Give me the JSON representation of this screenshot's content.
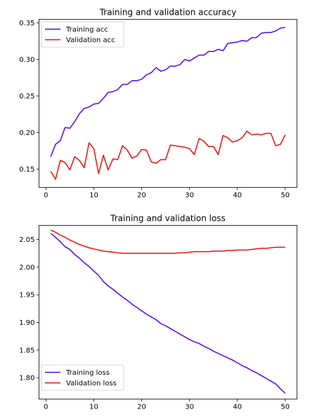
{
  "chart_data": [
    {
      "type": "line",
      "title": "Training and validation accuracy",
      "xlabel": "",
      "ylabel": "",
      "xlim": [
        -1.45,
        52.45
      ],
      "ylim": [
        0.125,
        0.355
      ],
      "xticks": [
        "0",
        "10",
        "20",
        "30",
        "40",
        "50"
      ],
      "xtick_values": [
        0,
        10,
        20,
        30,
        40,
        50
      ],
      "yticks": [
        "0.15",
        "0.20",
        "0.25",
        "0.30",
        "0.35"
      ],
      "ytick_values": [
        0.15,
        0.2,
        0.25,
        0.3,
        0.35
      ],
      "legend": "upper left",
      "grid": false,
      "x": [
        1,
        2,
        3,
        4,
        5,
        6,
        7,
        8,
        9,
        10,
        11,
        12,
        13,
        14,
        15,
        16,
        17,
        18,
        19,
        20,
        21,
        22,
        23,
        24,
        25,
        26,
        27,
        28,
        29,
        30,
        31,
        32,
        33,
        34,
        35,
        36,
        37,
        38,
        39,
        40,
        41,
        42,
        43,
        44,
        45,
        46,
        47,
        48,
        49,
        50
      ],
      "series": [
        {
          "name": "Training acc",
          "color": "#4b0af5",
          "values": [
            0.167,
            0.184,
            0.189,
            0.207,
            0.206,
            0.215,
            0.226,
            0.233,
            0.235,
            0.239,
            0.24,
            0.247,
            0.255,
            0.256,
            0.259,
            0.266,
            0.266,
            0.271,
            0.271,
            0.273,
            0.279,
            0.282,
            0.289,
            0.284,
            0.286,
            0.291,
            0.291,
            0.293,
            0.3,
            0.298,
            0.302,
            0.306,
            0.306,
            0.311,
            0.311,
            0.314,
            0.312,
            0.322,
            0.323,
            0.324,
            0.326,
            0.325,
            0.33,
            0.33,
            0.336,
            0.337,
            0.337,
            0.339,
            0.343,
            0.344
          ]
        },
        {
          "name": "Validation acc",
          "color": "#f20d0d",
          "values": [
            0.147,
            0.136,
            0.162,
            0.159,
            0.149,
            0.167,
            0.162,
            0.152,
            0.186,
            0.178,
            0.144,
            0.169,
            0.149,
            0.164,
            0.163,
            0.182,
            0.176,
            0.165,
            0.168,
            0.177,
            0.176,
            0.16,
            0.158,
            0.163,
            0.163,
            0.183,
            0.182,
            0.181,
            0.18,
            0.178,
            0.17,
            0.192,
            0.188,
            0.181,
            0.181,
            0.17,
            0.196,
            0.193,
            0.187,
            0.189,
            0.193,
            0.202,
            0.197,
            0.198,
            0.197,
            0.199,
            0.199,
            0.182,
            0.184,
            0.197
          ]
        }
      ]
    },
    {
      "type": "line",
      "title": "Training and validation loss",
      "xlabel": "",
      "ylabel": "",
      "xlim": [
        -1.45,
        52.45
      ],
      "ylim": [
        1.7615,
        2.0755
      ],
      "xticks": [
        "0",
        "10",
        "20",
        "30",
        "40",
        "50"
      ],
      "xtick_values": [
        0,
        10,
        20,
        30,
        40,
        50
      ],
      "yticks": [
        "1.80",
        "1.85",
        "1.90",
        "1.95",
        "2.00",
        "2.05"
      ],
      "ytick_values": [
        1.8,
        1.85,
        1.9,
        1.95,
        2.0,
        2.05
      ],
      "legend": "lower left",
      "grid": false,
      "x": [
        1,
        2,
        3,
        4,
        5,
        6,
        7,
        8,
        9,
        10,
        11,
        12,
        13,
        14,
        15,
        16,
        17,
        18,
        19,
        20,
        21,
        22,
        23,
        24,
        25,
        26,
        27,
        28,
        29,
        30,
        31,
        32,
        33,
        34,
        35,
        36,
        37,
        38,
        39,
        40,
        41,
        42,
        43,
        44,
        45,
        46,
        47,
        48,
        49,
        50
      ],
      "series": [
        {
          "name": "Training loss",
          "color": "#4b0af5",
          "values": [
            2.061,
            2.054,
            2.046,
            2.037,
            2.032,
            2.023,
            2.016,
            2.008,
            2.001,
            1.993,
            1.985,
            1.974,
            1.966,
            1.96,
            1.953,
            1.946,
            1.94,
            1.933,
            1.927,
            1.921,
            1.915,
            1.91,
            1.905,
            1.898,
            1.894,
            1.889,
            1.884,
            1.879,
            1.874,
            1.869,
            1.865,
            1.862,
            1.857,
            1.853,
            1.848,
            1.844,
            1.84,
            1.836,
            1.832,
            1.827,
            1.822,
            1.818,
            1.813,
            1.809,
            1.804,
            1.799,
            1.794,
            1.789,
            1.78,
            1.772
          ]
        },
        {
          "name": "Validation loss",
          "color": "#f20d0d",
          "values": [
            2.067,
            2.063,
            2.058,
            2.054,
            2.049,
            2.045,
            2.041,
            2.038,
            2.035,
            2.033,
            2.031,
            2.029,
            2.028,
            2.027,
            2.026,
            2.025,
            2.025,
            2.025,
            2.025,
            2.025,
            2.025,
            2.025,
            2.025,
            2.025,
            2.025,
            2.025,
            2.025,
            2.026,
            2.026,
            2.027,
            2.028,
            2.028,
            2.028,
            2.028,
            2.029,
            2.029,
            2.029,
            2.03,
            2.03,
            2.031,
            2.031,
            2.031,
            2.032,
            2.033,
            2.034,
            2.034,
            2.035,
            2.036,
            2.036,
            2.036
          ]
        }
      ]
    }
  ]
}
